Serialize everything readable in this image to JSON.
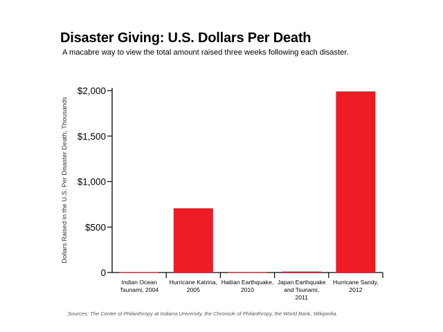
{
  "chart_data": {
    "type": "bar",
    "title": "Disaster Giving: U.S. Dollars Per Death",
    "subtitle": "A macabre way to view the total amount raised three weeks following each disaster.",
    "xlabel": "",
    "ylabel": "Dollars Raised in the U.S. Per Disaster Death, Thousands",
    "ylim": [
      0,
      2000
    ],
    "yticks": [
      0,
      500,
      1000,
      1500,
      2000
    ],
    "ytick_labels": [
      "0",
      "$500",
      "$1,000",
      "$1,500",
      "$2,000"
    ],
    "categories": [
      [
        "Indian Ocean",
        "Tsunami, 2004"
      ],
      [
        "Hurricane Katrina,",
        "2005"
      ],
      [
        "Haitian Earthquake,",
        "2010"
      ],
      [
        "Japan Earthquake",
        "and Tsunami,",
        "2011"
      ],
      [
        "Hurricane Sandy,",
        "2012"
      ]
    ],
    "values": [
      3,
      706,
      2,
      11,
      1991
    ],
    "bar_color": "#ed1c24",
    "grid": false,
    "source": "Sources: The Center of Philanthropy at Indiana University, the Chronicle of Philanthropy, the World Bank, Wikipedia."
  }
}
